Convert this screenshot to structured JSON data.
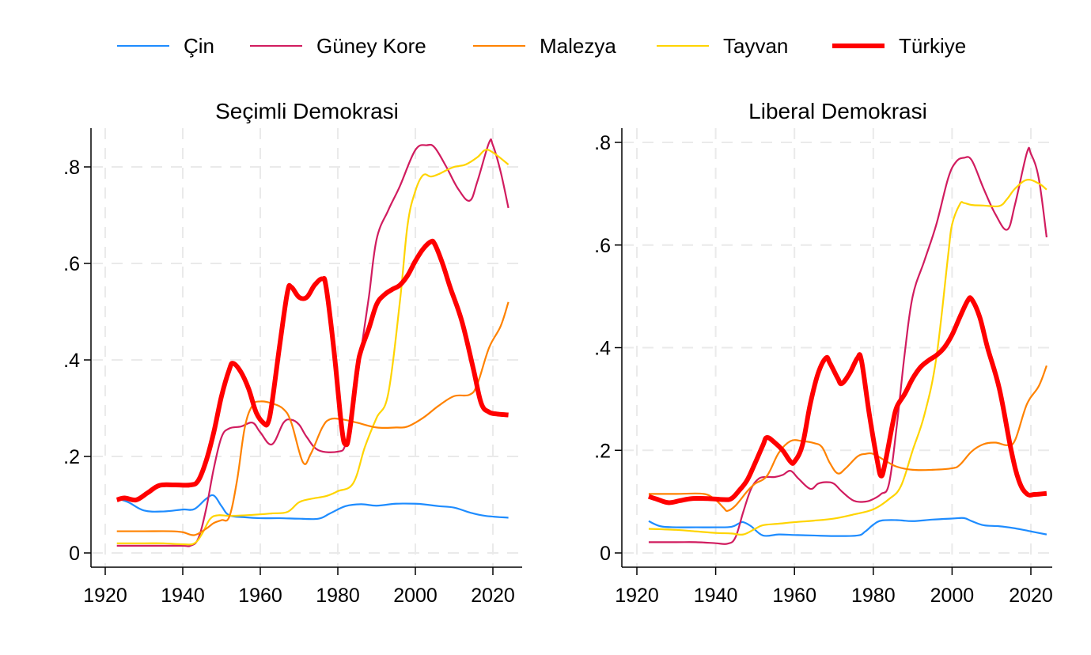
{
  "chart_data": {
    "type": "line",
    "legend": {
      "placement": "top",
      "entries": [
        {
          "name": "Çin",
          "color": "#1e8cff",
          "emphasis": false
        },
        {
          "name": "Güney Kore",
          "color": "#d11c5f",
          "emphasis": false
        },
        {
          "name": "Malezya",
          "color": "#ff8200",
          "emphasis": false
        },
        {
          "name": "Tayvan",
          "color": "#ffd400",
          "emphasis": false
        },
        {
          "name": "Türkiye",
          "color": "#ff0000",
          "emphasis": true
        }
      ]
    },
    "panels": [
      {
        "title": "Seçimli Demokrasi",
        "xlabel": "",
        "ylabel": "",
        "xlim": [
          1916,
          2028
        ],
        "ylim": [
          -0.03,
          0.88
        ],
        "xticks": [
          1920,
          1940,
          1960,
          1980,
          2000,
          2020
        ],
        "xtick_labels": [
          "1920",
          "1940",
          "1960",
          "1980",
          "2000",
          "2020"
        ],
        "yticks": [
          0,
          0.2,
          0.4,
          0.6,
          0.8
        ],
        "ytick_labels": [
          "0",
          ".2",
          ".4",
          ".6",
          ".8"
        ],
        "grid": true,
        "series": [
          {
            "name": "Çin",
            "x": [
              1923,
              1926,
              1930,
              1935,
              1940,
              1943,
              1946,
              1948,
              1950,
              1952,
              1956,
              1960,
              1965,
              1970,
              1975,
              1978,
              1982,
              1986,
              1990,
              1995,
              2000,
              2003,
              2006,
              2010,
              2014,
              2018,
              2024
            ],
            "y": [
              0.113,
              0.105,
              0.088,
              0.086,
              0.09,
              0.091,
              0.112,
              0.119,
              0.097,
              0.078,
              0.074,
              0.072,
              0.072,
              0.071,
              0.071,
              0.082,
              0.097,
              0.101,
              0.098,
              0.102,
              0.102,
              0.1,
              0.097,
              0.094,
              0.084,
              0.077,
              0.073
            ]
          },
          {
            "name": "Güney Kore",
            "x": [
              1923,
              1930,
              1935,
              1940,
              1942,
              1944,
              1946,
              1948,
              1950,
              1952,
              1955,
              1958,
              1960,
              1963,
              1966,
              1968,
              1970,
              1972,
              1975,
              1980,
              1982,
              1984,
              1986,
              1988,
              1990,
              1993,
              1996,
              2000,
              2003,
              2005,
              2008,
              2011,
              2014,
              2016,
              2019,
              2020,
              2022,
              2024
            ],
            "y": [
              0.015,
              0.015,
              0.015,
              0.015,
              0.015,
              0.03,
              0.09,
              0.175,
              0.24,
              0.258,
              0.262,
              0.27,
              0.25,
              0.225,
              0.27,
              0.276,
              0.266,
              0.24,
              0.213,
              0.21,
              0.225,
              0.3,
              0.42,
              0.53,
              0.65,
              0.71,
              0.76,
              0.835,
              0.845,
              0.84,
              0.8,
              0.755,
              0.73,
              0.77,
              0.85,
              0.845,
              0.79,
              0.715
            ]
          },
          {
            "name": "Malezya",
            "x": [
              1923,
              1930,
              1937,
              1940,
              1943,
              1946,
              1948,
              1950,
              1952,
              1954,
              1956,
              1958,
              1960,
              1963,
              1966,
              1968,
              1971,
              1973,
              1976,
              1978,
              1981,
              1985,
              1990,
              1995,
              1998,
              2002,
              2006,
              2010,
              2014,
              2016,
              2019,
              2022,
              2024
            ],
            "y": [
              0.045,
              0.045,
              0.045,
              0.043,
              0.037,
              0.05,
              0.062,
              0.068,
              0.075,
              0.15,
              0.26,
              0.306,
              0.314,
              0.31,
              0.298,
              0.27,
              0.188,
              0.205,
              0.26,
              0.277,
              0.277,
              0.27,
              0.26,
              0.26,
              0.262,
              0.28,
              0.305,
              0.325,
              0.328,
              0.35,
              0.425,
              0.47,
              0.52
            ]
          },
          {
            "name": "Tayvan",
            "x": [
              1923,
              1930,
              1935,
              1940,
              1943,
              1945,
              1947,
              1949,
              1952,
              1956,
              1960,
              1963,
              1967,
              1970,
              1973,
              1977,
              1980,
              1984,
              1987,
              1990,
              1993,
              1996,
              1998,
              2000,
              2002,
              2004,
              2006,
              2008,
              2010,
              2013,
              2016,
              2018,
              2020,
              2024
            ],
            "y": [
              0.02,
              0.02,
              0.02,
              0.018,
              0.02,
              0.04,
              0.07,
              0.078,
              0.077,
              0.078,
              0.08,
              0.082,
              0.085,
              0.105,
              0.112,
              0.118,
              0.128,
              0.145,
              0.22,
              0.28,
              0.33,
              0.52,
              0.68,
              0.75,
              0.783,
              0.78,
              0.785,
              0.793,
              0.8,
              0.805,
              0.82,
              0.835,
              0.83,
              0.805
            ]
          },
          {
            "name": "Türkiye",
            "x": [
              1923,
              1925,
              1928,
              1931,
              1934,
              1938,
              1942,
              1944,
              1946,
              1948,
              1950,
              1952,
              1953,
              1955,
              1957,
              1959,
              1961,
              1962,
              1963,
              1965,
              1967,
              1968,
              1970,
              1972,
              1974,
              1976,
              1977,
              1979,
              1981,
              1982,
              1983,
              1985,
              1986,
              1988,
              1990,
              1992,
              1994,
              1996,
              1998,
              2000,
              2002,
              2004,
              2005,
              2007,
              2009,
              2012,
              2015,
              2017,
              2019,
              2021,
              2024
            ],
            "y": [
              0.11,
              0.114,
              0.11,
              0.125,
              0.14,
              0.141,
              0.141,
              0.15,
              0.19,
              0.25,
              0.325,
              0.38,
              0.393,
              0.375,
              0.34,
              0.29,
              0.268,
              0.27,
              0.31,
              0.43,
              0.54,
              0.551,
              0.53,
              0.53,
              0.555,
              0.568,
              0.55,
              0.42,
              0.26,
              0.225,
              0.25,
              0.38,
              0.42,
              0.465,
              0.515,
              0.535,
              0.546,
              0.555,
              0.575,
              0.605,
              0.63,
              0.645,
              0.64,
              0.6,
              0.55,
              0.48,
              0.38,
              0.31,
              0.292,
              0.288,
              0.286
            ]
          }
        ]
      },
      {
        "title": "Liberal Demokrasi",
        "xlabel": "",
        "ylabel": "",
        "xlim": [
          1916,
          2028
        ],
        "ylim": [
          -0.028,
          0.82
        ],
        "xticks": [
          1920,
          1940,
          1960,
          1980,
          2000,
          2020
        ],
        "xtick_labels": [
          "1920",
          "1940",
          "1960",
          "1980",
          "2000",
          "2020"
        ],
        "yticks": [
          0,
          0.2,
          0.4,
          0.6,
          0.8
        ],
        "ytick_labels": [
          "0",
          ".2",
          ".4",
          ".6",
          ".8"
        ],
        "grid": true,
        "series": [
          {
            "name": "Çin",
            "x": [
              1923,
              1926,
              1930,
              1935,
              1940,
              1944,
              1946,
              1947,
              1949,
              1952,
              1956,
              1960,
              1965,
              1970,
              1976,
              1978,
              1980,
              1982,
              1986,
              1990,
              1995,
              2000,
              2003,
              2005,
              2008,
              2012,
              2016,
              2020,
              2024
            ],
            "y": [
              0.062,
              0.052,
              0.05,
              0.05,
              0.05,
              0.051,
              0.058,
              0.06,
              0.052,
              0.034,
              0.036,
              0.035,
              0.034,
              0.033,
              0.034,
              0.042,
              0.055,
              0.063,
              0.064,
              0.062,
              0.065,
              0.067,
              0.068,
              0.062,
              0.054,
              0.052,
              0.048,
              0.042,
              0.036
            ]
          },
          {
            "name": "Güney Kore",
            "x": [
              1923,
              1930,
              1935,
              1940,
              1943,
              1945,
              1947,
              1949,
              1951,
              1953,
              1955,
              1957,
              1959,
              1961,
              1964,
              1966,
              1968,
              1970,
              1972,
              1975,
              1978,
              1980,
              1982,
              1984,
              1986,
              1988,
              1990,
              1993,
              1996,
              1999,
              2001,
              2003,
              2005,
              2008,
              2011,
              2014,
              2016,
              2019,
              2020,
              2022,
              2024
            ],
            "y": [
              0.021,
              0.021,
              0.021,
              0.019,
              0.018,
              0.03,
              0.08,
              0.125,
              0.145,
              0.148,
              0.148,
              0.152,
              0.16,
              0.145,
              0.125,
              0.135,
              0.138,
              0.135,
              0.12,
              0.102,
              0.1,
              0.105,
              0.115,
              0.135,
              0.25,
              0.39,
              0.5,
              0.57,
              0.64,
              0.73,
              0.762,
              0.77,
              0.765,
              0.71,
              0.66,
              0.63,
              0.68,
              0.78,
              0.778,
              0.73,
              0.615
            ]
          },
          {
            "name": "Tayvan",
            "x": [
              1923,
              1930,
              1935,
              1940,
              1944,
              1947,
              1950,
              1952,
              1956,
              1960,
              1965,
              1970,
              1975,
              1980,
              1984,
              1987,
              1990,
              1993,
              1996,
              1999,
              2000,
              2002,
              2003,
              2005,
              2008,
              2012,
              2014,
              2016,
              2019,
              2022,
              2024
            ],
            "y": [
              0.047,
              0.045,
              0.042,
              0.039,
              0.038,
              0.036,
              0.047,
              0.054,
              0.057,
              0.06,
              0.063,
              0.067,
              0.075,
              0.085,
              0.105,
              0.13,
              0.2,
              0.27,
              0.38,
              0.58,
              0.64,
              0.68,
              0.682,
              0.678,
              0.677,
              0.676,
              0.69,
              0.71,
              0.727,
              0.72,
              0.708
            ]
          },
          {
            "name": "Malezya",
            "x": [
              1923,
              1930,
              1937,
              1940,
              1942,
              1943,
              1945,
              1948,
              1950,
              1953,
              1956,
              1959,
              1962,
              1965,
              1967,
              1969,
              1971,
              1973,
              1976,
              1978,
              1980,
              1983,
              1986,
              1990,
              1995,
              2000,
              2002,
              2005,
              2008,
              2011,
              2014,
              2016,
              2019,
              2022,
              2024
            ],
            "y": [
              0.115,
              0.115,
              0.115,
              0.103,
              0.088,
              0.082,
              0.092,
              0.12,
              0.135,
              0.15,
              0.195,
              0.218,
              0.218,
              0.214,
              0.206,
              0.175,
              0.155,
              0.165,
              0.188,
              0.193,
              0.193,
              0.18,
              0.168,
              0.162,
              0.162,
              0.165,
              0.172,
              0.198,
              0.212,
              0.215,
              0.21,
              0.22,
              0.29,
              0.325,
              0.365
            ]
          },
          {
            "name": "Türkiye",
            "x": [
              1923,
              1925,
              1928,
              1931,
              1934,
              1938,
              1942,
              1944,
              1946,
              1948,
              1950,
              1952,
              1953,
              1955,
              1957,
              1959,
              1960,
              1962,
              1964,
              1966,
              1968,
              1969,
              1971,
              1972,
              1974,
              1976,
              1977,
              1979,
              1981,
              1982,
              1983,
              1985,
              1986,
              1988,
              1990,
              1992,
              1994,
              1996,
              1998,
              2000,
              2002,
              2004,
              2005,
              2007,
              2009,
              2012,
              2015,
              2017,
              2019,
              2021,
              2024
            ],
            "y": [
              0.11,
              0.105,
              0.098,
              0.102,
              0.106,
              0.106,
              0.104,
              0.106,
              0.122,
              0.142,
              0.175,
              0.21,
              0.225,
              0.215,
              0.2,
              0.178,
              0.178,
              0.21,
              0.29,
              0.35,
              0.38,
              0.37,
              0.34,
              0.33,
              0.35,
              0.38,
              0.375,
              0.27,
              0.18,
              0.15,
              0.175,
              0.255,
              0.285,
              0.31,
              0.34,
              0.362,
              0.375,
              0.385,
              0.4,
              0.425,
              0.46,
              0.492,
              0.494,
              0.46,
              0.4,
              0.32,
              0.2,
              0.14,
              0.115,
              0.114,
              0.116
            ]
          }
        ]
      }
    ]
  }
}
